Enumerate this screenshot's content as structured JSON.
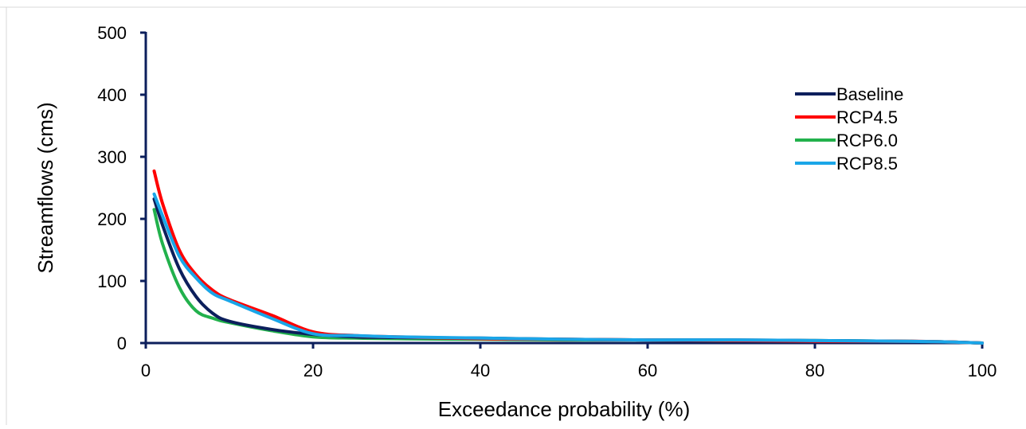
{
  "chart_data": {
    "type": "line",
    "title": "",
    "xlabel": "Exceedance probability (%)",
    "ylabel": "Streamflows (cms)",
    "xlim": [
      0,
      100
    ],
    "ylim": [
      0,
      500
    ],
    "x_ticks": [
      0,
      20,
      40,
      60,
      80,
      100
    ],
    "y_ticks": [
      0,
      100,
      200,
      300,
      400,
      500
    ],
    "grid": false,
    "legend_position": "top-right",
    "x": [
      1,
      2,
      4,
      6,
      8,
      10,
      15,
      20,
      25,
      30,
      40,
      50,
      60,
      70,
      80,
      90,
      95,
      100
    ],
    "series": [
      {
        "name": "Baseline",
        "color": "#0c1f5c",
        "values": [
          232,
          190,
          120,
          75,
          48,
          35,
          22,
          14,
          10,
          9,
          8,
          6,
          5,
          5,
          4,
          3,
          2,
          0
        ]
      },
      {
        "name": "RCP4.5",
        "color": "#ff0000",
        "values": [
          277,
          225,
          150,
          110,
          85,
          70,
          45,
          18,
          12,
          10,
          7,
          6,
          5,
          4,
          3,
          3,
          2,
          0
        ]
      },
      {
        "name": "RCP6.0",
        "color": "#22b14c",
        "values": [
          215,
          160,
          90,
          52,
          40,
          33,
          20,
          10,
          8,
          7,
          6,
          5,
          5,
          4,
          4,
          3,
          2,
          0
        ]
      },
      {
        "name": "RCP8.5",
        "color": "#1aa6e8",
        "values": [
          240,
          205,
          140,
          105,
          80,
          68,
          40,
          15,
          12,
          10,
          8,
          6,
          5,
          5,
          4,
          3,
          2,
          0
        ]
      }
    ],
    "axis_color": "#0c1f5c"
  }
}
